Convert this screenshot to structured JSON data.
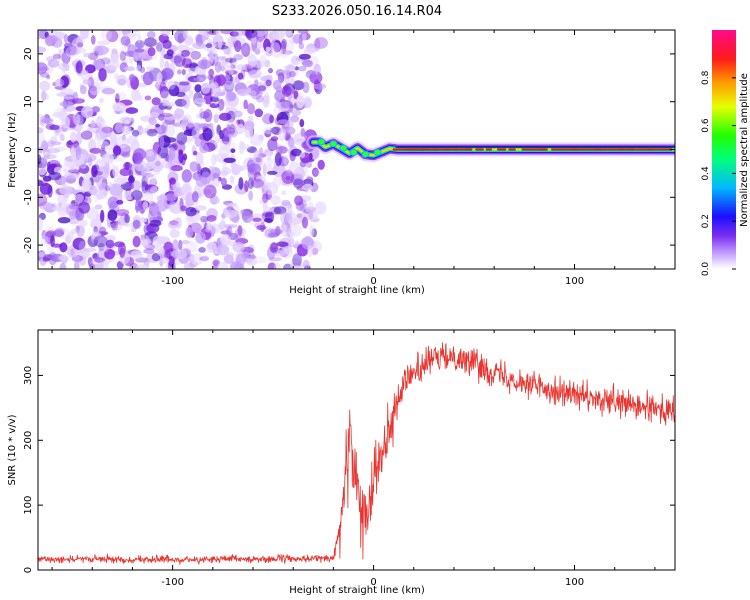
{
  "title": "S233.2026.050.16.14.R04",
  "colors": {
    "snr_line": "#e8332e",
    "background_scatter": "#8a2be2",
    "ridge": "#d81b1b"
  },
  "chart_data": [
    {
      "type": "heatmap",
      "name": "spectrogram",
      "xlabel": "Height of straight line (km)",
      "ylabel": "Frequency (Hz)",
      "xlim": [
        -167,
        150
      ],
      "ylim": [
        -25,
        25
      ],
      "x_ticks": [
        -100,
        0,
        100
      ],
      "x_tick_labels": [
        "-100",
        "0",
        "100"
      ],
      "y_ticks": [
        -20,
        -10,
        0,
        10,
        20
      ],
      "y_tick_labels": [
        "-20",
        "-10",
        "0",
        "10",
        "20"
      ],
      "noise_region_x": [
        -167,
        -30
      ],
      "ridge": {
        "x": [
          -30,
          -27,
          -24,
          -20,
          -16,
          -12,
          -8,
          -4,
          0,
          4,
          8,
          12,
          20,
          40,
          60,
          80,
          100,
          120,
          150
        ],
        "y": [
          1.5,
          1.5,
          0.5,
          1.2,
          0.2,
          -0.8,
          0.3,
          -1.0,
          -1.2,
          -0.5,
          0.2,
          0,
          0,
          0,
          0,
          0,
          0,
          0,
          0
        ]
      },
      "colorbar": {
        "label": "Normalized spectral amplitude",
        "range": [
          0,
          1
        ],
        "ticks": [
          0.0,
          0.2,
          0.4,
          0.6,
          0.8
        ],
        "tick_labels": [
          "0.0",
          "0.2",
          "0.4",
          "0.6",
          "0.8"
        ]
      }
    },
    {
      "type": "line",
      "name": "snr",
      "xlabel": "Height of straight line (km)",
      "ylabel": "SNR (10 * v/v)",
      "xlim": [
        -167,
        150
      ],
      "ylim": [
        0,
        370
      ],
      "x_ticks": [
        -100,
        0,
        100
      ],
      "x_tick_labels": [
        "-100",
        "0",
        "100"
      ],
      "y_ticks": [
        0,
        100,
        200,
        300
      ],
      "y_tick_labels": [
        "0",
        "100",
        "200",
        "300"
      ],
      "trend": {
        "x": [
          -167,
          -100,
          -50,
          -20,
          -17,
          -14,
          -12,
          -10,
          -8,
          -5,
          -2,
          0,
          5,
          10,
          15,
          20,
          30,
          40,
          50,
          60,
          70,
          80,
          90,
          100,
          110,
          120,
          130,
          140,
          150
        ],
        "y": [
          17,
          16,
          17,
          18,
          60,
          150,
          230,
          180,
          120,
          80,
          110,
          150,
          200,
          250,
          285,
          305,
          325,
          330,
          320,
          305,
          295,
          285,
          278,
          270,
          262,
          258,
          252,
          248,
          245
        ]
      },
      "noise_amplitude": {
        "x": [
          -167,
          -20,
          -12,
          0,
          20,
          60,
          150
        ],
        "y": [
          7,
          8,
          60,
          55,
          30,
          28,
          30
        ]
      }
    }
  ]
}
